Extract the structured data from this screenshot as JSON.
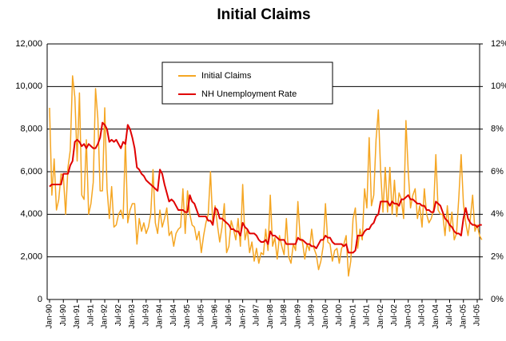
{
  "chart_data": {
    "type": "line",
    "title": "Initial Claims",
    "categories": [
      "Jan-90",
      null,
      null,
      null,
      null,
      null,
      "Jul-90",
      null,
      null,
      null,
      null,
      null,
      "Jan-91",
      null,
      null,
      null,
      null,
      null,
      "Jul-91",
      null,
      null,
      null,
      null,
      null,
      "Jan-92",
      null,
      null,
      null,
      null,
      null,
      "Jul-92",
      null,
      null,
      null,
      null,
      null,
      "Jan-93",
      null,
      null,
      null,
      null,
      null,
      "Jul-93",
      null,
      null,
      null,
      null,
      null,
      "Jan-94",
      null,
      null,
      null,
      null,
      null,
      "Jul-94",
      null,
      null,
      null,
      null,
      null,
      "Jan-95",
      null,
      null,
      null,
      null,
      null,
      "Jul-95",
      null,
      null,
      null,
      null,
      null,
      "Jan-96",
      null,
      null,
      null,
      null,
      null,
      "Jul-96",
      null,
      null,
      null,
      null,
      null,
      "Jan-97",
      null,
      null,
      null,
      null,
      null,
      "Jul-97",
      null,
      null,
      null,
      null,
      null,
      "Jan-98",
      null,
      null,
      null,
      null,
      null,
      "Jul-98",
      null,
      null,
      null,
      null,
      null,
      "Jan-99",
      null,
      null,
      null,
      null,
      null,
      "Jul-99",
      null,
      null,
      null,
      null,
      null,
      "Jan-00",
      null,
      null,
      null,
      null,
      null,
      "Jul-00",
      null,
      null,
      null,
      null,
      null,
      "Jan-01",
      null,
      null,
      null,
      null,
      null,
      "Jul-01",
      null,
      null,
      null,
      null,
      null,
      "Jan-02",
      null,
      null,
      null,
      null,
      null,
      "Jul-02",
      null,
      null,
      null,
      null,
      null,
      "Jan-03",
      null,
      null,
      null,
      null,
      null,
      "Jul-03",
      null,
      null,
      null,
      null,
      null,
      "Jan-04",
      null,
      null,
      null,
      null,
      null,
      "Jul-04",
      null,
      null,
      null,
      null,
      null,
      "Jan-05",
      null,
      null,
      null,
      null,
      null,
      "Jul-05",
      null,
      null
    ],
    "series": [
      {
        "name": "Initial Claims",
        "color": "#f5a623",
        "values": [
          9000,
          4900,
          6600,
          4200,
          4700,
          5900,
          5800,
          4000,
          6200,
          7000,
          10500,
          9500,
          6500,
          9700,
          4900,
          4700,
          7500,
          4000,
          4500,
          5500,
          9900,
          8500,
          5100,
          5100,
          9000,
          5200,
          3800,
          5300,
          3400,
          3500,
          4000,
          4200,
          3800,
          7500,
          3600,
          4200,
          4500,
          4500,
          2600,
          3800,
          3200,
          3600,
          3100,
          3400,
          4000,
          6100,
          3600,
          3100,
          4200,
          3400,
          3800,
          4300,
          3000,
          3200,
          2500,
          3100,
          3300,
          3400,
          5200,
          3100,
          5100,
          4000,
          3500,
          3400,
          2800,
          3200,
          2200,
          3000,
          3600,
          4000,
          6000,
          3500,
          4400,
          3500,
          2700,
          3400,
          4500,
          2200,
          2500,
          3700,
          3300,
          2800,
          3800,
          2500,
          5400,
          2800,
          3300,
          2200,
          2700,
          1800,
          2400,
          1700,
          2200,
          2100,
          3300,
          2300,
          4900,
          2500,
          2900,
          1900,
          3000,
          2500,
          2100,
          3800,
          2000,
          1700,
          2600,
          2300,
          4600,
          2900,
          2700,
          1900,
          2600,
          2300,
          3300,
          2400,
          2100,
          1400,
          1800,
          2500,
          4500,
          2700,
          2600,
          1800,
          2300,
          2400,
          1700,
          2400,
          2600,
          3000,
          1100,
          1800,
          3800,
          4300,
          2400,
          3300,
          2800,
          5200,
          4300,
          7600,
          4400,
          4900,
          7500,
          8900,
          6000,
          4100,
          6200,
          4100,
          6200,
          4000,
          5600,
          3900,
          5000,
          4700,
          3800,
          8400,
          6000,
          4300,
          4900,
          5200,
          3800,
          4400,
          3400,
          5200,
          4000,
          3600,
          3800,
          4200,
          6800,
          4200,
          4000,
          4000,
          3000,
          4400,
          3200,
          4100,
          2800,
          3100,
          4800,
          6800,
          4500,
          3600,
          3000,
          3800,
          4900,
          3200,
          3500,
          3000,
          2800
        ]
      },
      {
        "name": "NH Unemployment Rate",
        "color": "#e00000",
        "axis": "y2",
        "values": [
          5.3,
          5.4,
          5.4,
          5.4,
          5.4,
          5.4,
          5.9,
          5.9,
          5.9,
          6.3,
          6.5,
          7.4,
          7.5,
          7.4,
          7.2,
          7.3,
          7.1,
          7.3,
          7.2,
          7.1,
          7.1,
          7.3,
          7.6,
          8.3,
          8.2,
          8.0,
          7.4,
          7.5,
          7.4,
          7.5,
          7.3,
          7.1,
          7.4,
          7.3,
          8.2,
          8.0,
          7.6,
          7.1,
          6.2,
          6.1,
          5.9,
          5.8,
          5.6,
          5.5,
          5.4,
          5.3,
          5.2,
          5.1,
          6.1,
          5.9,
          5.4,
          5.0,
          4.6,
          4.7,
          4.6,
          4.4,
          4.2,
          4.2,
          4.2,
          4.1,
          4.1,
          4.9,
          4.6,
          4.5,
          4.2,
          3.9,
          3.9,
          3.9,
          3.9,
          3.7,
          3.7,
          3.5,
          4.3,
          4.2,
          3.8,
          3.8,
          3.7,
          3.6,
          3.5,
          3.3,
          3.3,
          3.2,
          3.2,
          3.0,
          3.6,
          3.4,
          3.3,
          3.1,
          3.1,
          3.1,
          3.0,
          2.8,
          2.7,
          2.7,
          2.8,
          2.6,
          3.2,
          3.0,
          3.0,
          2.9,
          2.8,
          2.8,
          2.8,
          2.6,
          2.6,
          2.6,
          2.6,
          2.6,
          2.9,
          2.8,
          2.8,
          2.7,
          2.6,
          2.6,
          2.5,
          2.5,
          2.4,
          2.6,
          2.8,
          2.8,
          3.0,
          2.9,
          2.9,
          2.7,
          2.6,
          2.6,
          2.6,
          2.6,
          2.5,
          2.6,
          2.2,
          2.2,
          2.2,
          2.3,
          3.0,
          3.0,
          3.0,
          3.2,
          3.3,
          3.3,
          3.5,
          3.6,
          3.9,
          4.0,
          4.6,
          4.6,
          4.6,
          4.6,
          4.4,
          4.6,
          4.5,
          4.5,
          4.4,
          4.7,
          4.7,
          4.8,
          4.9,
          4.7,
          4.7,
          4.6,
          4.5,
          4.5,
          4.4,
          4.4,
          4.2,
          4.2,
          4.1,
          4.1,
          4.6,
          4.5,
          4.4,
          4.1,
          3.8,
          3.7,
          3.5,
          3.4,
          3.2,
          3.1,
          3.1,
          3.0,
          3.8,
          4.3,
          3.8,
          3.6,
          3.5,
          3.5,
          3.4,
          3.5,
          3.5
        ]
      }
    ],
    "ylim": [
      0,
      12000
    ],
    "yticks": [
      0,
      {
        "value": 2000,
        "label": "2,000"
      },
      {
        "value": 4000,
        "label": "4,000"
      },
      {
        "value": 6000,
        "label": "6,000"
      },
      {
        "value": 8000,
        "label": "8,000"
      },
      {
        "value": 10000,
        "label": "10,000"
      },
      {
        "value": 12000,
        "label": "12,000"
      }
    ],
    "y2lim": [
      0,
      12
    ],
    "y2ticks": [
      {
        "value": 0,
        "label": "0%"
      },
      {
        "value": 2,
        "label": "2%"
      },
      {
        "value": 4,
        "label": "4%"
      },
      {
        "value": 6,
        "label": "6%"
      },
      {
        "value": 8,
        "label": "8%"
      },
      {
        "value": 10,
        "label": "10%"
      },
      {
        "value": 12,
        "label": "12%"
      }
    ],
    "grid": true,
    "legend": "top"
  }
}
